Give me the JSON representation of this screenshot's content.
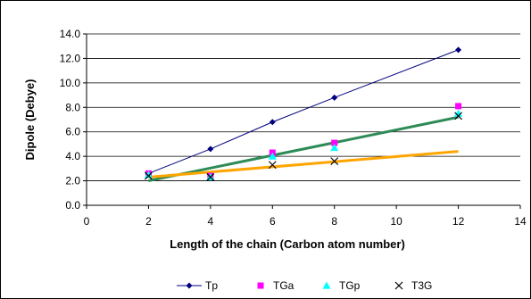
{
  "chart_data": {
    "type": "scatter",
    "title": "",
    "xlabel": "Length of the chain (Carbon atom number)",
    "ylabel": "Dipole (Debye)",
    "xlim": [
      0,
      14
    ],
    "ylim": [
      0.0,
      14.0
    ],
    "x_ticks": [
      0,
      2,
      4,
      6,
      8,
      10,
      12,
      14
    ],
    "y_ticks": [
      0.0,
      2.0,
      4.0,
      6.0,
      8.0,
      10.0,
      12.0,
      14.0
    ],
    "x_tick_labels": [
      "0",
      "2",
      "4",
      "6",
      "8",
      "10",
      "12",
      "14"
    ],
    "y_tick_labels": [
      "0.0",
      "2.0",
      "4.0",
      "6.0",
      "8.0",
      "10.0",
      "12.0",
      "14.0"
    ],
    "grid": "horizontal major gridlines",
    "legend_position": "bottom",
    "series": [
      {
        "name": "Tp",
        "marker": "diamond-line",
        "color": "#00007f",
        "x": [
          2,
          4,
          6,
          8,
          12
        ],
        "y": [
          2.6,
          4.6,
          6.8,
          8.8,
          12.7
        ]
      },
      {
        "name": "TGa",
        "marker": "square",
        "color": "#ff00ff",
        "x": [
          2,
          4,
          6,
          8,
          12
        ],
        "y": [
          2.6,
          2.4,
          4.3,
          5.1,
          8.1
        ]
      },
      {
        "name": "TGp",
        "marker": "triangle",
        "color": "#00ffff",
        "x": [
          2,
          4,
          6,
          8,
          12
        ],
        "y": [
          2.5,
          2.3,
          4.0,
          4.7,
          7.5
        ]
      },
      {
        "name": "T3G",
        "marker": "x",
        "color": "#000000",
        "x": [
          2,
          4,
          6,
          8,
          12
        ],
        "y": [
          2.4,
          2.3,
          3.3,
          3.6,
          7.3
        ]
      }
    ],
    "trendlines": [
      {
        "color": "#2e8b57",
        "x": [
          2,
          12
        ],
        "y": [
          2.0,
          7.2
        ]
      },
      {
        "color": "#ffa500",
        "x": [
          2,
          12
        ],
        "y": [
          2.3,
          4.4
        ]
      }
    ]
  }
}
